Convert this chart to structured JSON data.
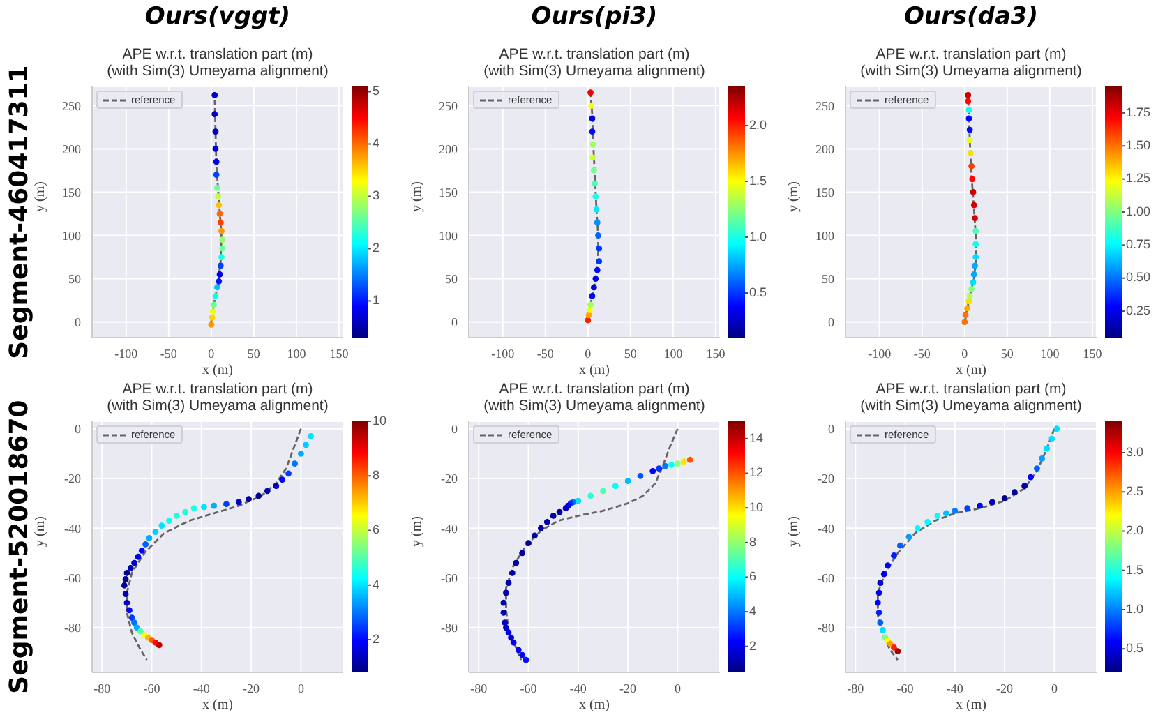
{
  "chart_data": [
    {
      "type": "line",
      "title": "APE w.r.t. translation part (m)\n(with Sim(3) Umeyama alignment)",
      "annotations": [
        "Ours(vggt)",
        "Segment-460417311"
      ],
      "xlabel": "x (m)",
      "ylabel": "y (m)",
      "xlim": [
        -140,
        155
      ],
      "ylim": [
        -18,
        272
      ],
      "xticks": [
        -100,
        -50,
        0,
        50,
        100,
        150
      ],
      "yticks": [
        0,
        50,
        100,
        150,
        200,
        250
      ],
      "grid": true,
      "legend": "top left",
      "clim": [
        0.3,
        5.1
      ],
      "cticks": [
        1,
        2,
        3,
        4,
        5
      ],
      "series": [
        {
          "name": "reference",
          "type": "line",
          "marker": "none",
          "line_style": "dashed",
          "color": "#666666",
          "x": [
            0,
            3,
            8,
            11,
            12,
            9,
            6,
            5,
            4
          ],
          "values": [
            0,
            20,
            45,
            70,
            100,
            140,
            180,
            220,
            262
          ]
        },
        {
          "type": "scatter",
          "marker": "circle",
          "x": [
            0,
            1,
            2,
            3,
            5,
            7,
            9,
            10,
            11,
            12,
            13,
            13,
            12,
            11,
            10,
            9,
            8,
            7,
            6,
            6,
            5,
            5,
            4,
            4
          ],
          "values": [
            -3,
            5,
            12,
            20,
            30,
            40,
            47,
            55,
            65,
            75,
            85,
            95,
            105,
            115,
            125,
            135,
            145,
            155,
            170,
            185,
            200,
            220,
            240,
            262
          ],
          "colors": [
            "#ff9500",
            "#ffd400",
            "#eaff15",
            "#6aff95",
            "#15ffea",
            "#00bfff",
            "#0015ff",
            "#0000ea",
            "#0040ff",
            "#15ffea",
            "#6aff95",
            "#95ff6a",
            "#ff9500",
            "#ff4000",
            "#ff6a00",
            "#ffbf00",
            "#bfff40",
            "#6aff95",
            "#0040ff",
            "#0000ea",
            "#0000d4",
            "#0000bf",
            "#0000bf",
            "#0000d4"
          ],
          "cvalues": [
            3.8,
            3.5,
            3.2,
            2.6,
            2.2,
            1.8,
            1.0,
            0.8,
            1.2,
            2.2,
            2.6,
            2.8,
            3.8,
            4.2,
            4.0,
            3.6,
            3.0,
            2.6,
            1.2,
            0.8,
            0.7,
            0.6,
            0.6,
            0.7
          ]
        }
      ]
    },
    {
      "type": "line",
      "title": "APE w.r.t. translation part (m)\n(with Sim(3) Umeyama alignment)",
      "annotations": [
        "Ours(pi3)"
      ],
      "xlabel": "x (m)",
      "ylabel": "y (m)",
      "xlim": [
        -140,
        155
      ],
      "ylim": [
        -18,
        272
      ],
      "xticks": [
        -100,
        -50,
        0,
        50,
        100,
        150
      ],
      "yticks": [
        0,
        50,
        100,
        150,
        200,
        250
      ],
      "grid": true,
      "legend": "top left",
      "clim": [
        0.1,
        2.35
      ],
      "cticks": [
        {
          "value": 0.5,
          "label": "0.5"
        },
        {
          "value": 1,
          "label": "1.0"
        },
        1.5,
        {
          "value": 2,
          "label": "2.0"
        }
      ],
      "series": [
        {
          "name": "reference",
          "type": "line",
          "marker": "none",
          "line_style": "dashed",
          "color": "#666666",
          "x": [
            0,
            3,
            8,
            12,
            12,
            10,
            8,
            6,
            5,
            3
          ],
          "values": [
            0,
            20,
            45,
            70,
            100,
            130,
            170,
            210,
            240,
            265
          ]
        },
        {
          "type": "scatter",
          "marker": "circle",
          "x": [
            0,
            1,
            2,
            3,
            5,
            7,
            9,
            11,
            13,
            13,
            12,
            11,
            10,
            9,
            8,
            7,
            6,
            6,
            5,
            5,
            4,
            3
          ],
          "values": [
            2,
            8,
            14,
            20,
            30,
            40,
            50,
            60,
            70,
            85,
            100,
            115,
            130,
            145,
            160,
            175,
            190,
            205,
            220,
            235,
            250,
            265
          ],
          "colors": [
            "#ff1f00",
            "#ffa700",
            "#fcff03",
            "#a1ff5e",
            "#0008ff",
            "#0000da",
            "#0000da",
            "#0008ff",
            "#0036ff",
            "#0036ff",
            "#0063ff",
            "#0091ff",
            "#00ebff",
            "#1affe6",
            "#47ffb8",
            "#74ff8b",
            "#cfff30",
            "#a1ff5e",
            "#0008ff",
            "#0000da",
            "#fcff03",
            "#f10000"
          ],
          "cvalues": [
            2.0,
            1.7,
            1.5,
            1.3,
            0.4,
            0.3,
            0.3,
            0.4,
            0.5,
            0.5,
            0.6,
            0.7,
            0.9,
            1.0,
            1.1,
            1.2,
            1.4,
            1.3,
            0.4,
            0.3,
            1.5,
            2.1
          ]
        }
      ]
    },
    {
      "type": "line",
      "title": "APE w.r.t. translation part (m)\n(with Sim(3) Umeyama alignment)",
      "annotations": [
        "Ours(da3)"
      ],
      "xlabel": "x (m)",
      "ylabel": "y (m)",
      "xlim": [
        -140,
        155
      ],
      "ylim": [
        -18,
        272
      ],
      "xticks": [
        -100,
        -50,
        0,
        50,
        100,
        150
      ],
      "yticks": [
        0,
        50,
        100,
        150,
        200,
        250
      ],
      "grid": true,
      "legend": "top left",
      "clim": [
        0.05,
        1.95
      ],
      "cticks": [
        0.25,
        {
          "value": 0.5,
          "label": "0.50"
        },
        0.75,
        {
          "value": 1,
          "label": "1.00"
        },
        1.25,
        {
          "value": 1.5,
          "label": "1.50"
        },
        1.75
      ],
      "series": [
        {
          "name": "reference",
          "type": "line",
          "marker": "none",
          "line_style": "dashed",
          "color": "#666666",
          "x": [
            0,
            6,
            11,
            13,
            13,
            11,
            8,
            6,
            5,
            4
          ],
          "values": [
            0,
            30,
            50,
            70,
            100,
            130,
            170,
            210,
            240,
            262
          ]
        },
        {
          "type": "scatter",
          "marker": "circle",
          "x": [
            0,
            1,
            3,
            5,
            6,
            8,
            10,
            11,
            12,
            13,
            13,
            13,
            12,
            11,
            10,
            9,
            8,
            7,
            6,
            6,
            5,
            5,
            4,
            4
          ],
          "values": [
            0,
            8,
            16,
            24,
            30,
            38,
            46,
            55,
            65,
            75,
            90,
            105,
            120,
            135,
            150,
            165,
            180,
            195,
            210,
            222,
            235,
            245,
            255,
            262
          ],
          "colors": [
            "#ff7200",
            "#ff7200",
            "#ffa800",
            "#ffdd00",
            "#b5ff4a",
            "#80ff80",
            "#00ddff",
            "#00a8ff",
            "#00a8ff",
            "#00ddff",
            "#14ffeb",
            "#4affb5",
            "#d00000",
            "#d00000",
            "#d00000",
            "#ff0700",
            "#ff3c00",
            "#ffdd00",
            "#ebff14",
            "#0007ff",
            "#0007ff",
            "#14ffeb",
            "#ff0700",
            "#d00000"
          ],
          "cvalues": [
            1.5,
            1.5,
            1.4,
            1.3,
            1.1,
            1.0,
            0.7,
            0.6,
            0.6,
            0.7,
            0.8,
            0.9,
            1.8,
            1.8,
            1.8,
            1.7,
            1.6,
            1.3,
            1.2,
            0.3,
            0.3,
            0.8,
            1.7,
            1.8
          ]
        }
      ]
    },
    {
      "type": "line",
      "title": "APE w.r.t. translation part (m)\n(with Sim(3) Umeyama alignment)",
      "annotations": [
        "Segment-520018670"
      ],
      "xlabel": "x (m)",
      "ylabel": "y (m)",
      "xlim": [
        -84,
        17
      ],
      "ylim": [
        -98,
        3
      ],
      "xticks": [
        -80,
        -60,
        -40,
        -20,
        0
      ],
      "yticks": [
        -80,
        -60,
        -40,
        -20,
        0
      ],
      "grid": true,
      "legend": "top left",
      "clim": [
        0.8,
        10
      ],
      "cticks": [
        2,
        4,
        6,
        8,
        10
      ],
      "series": [
        {
          "name": "reference",
          "type": "line",
          "marker": "none",
          "line_style": "dashed",
          "color": "#666666",
          "x": [
            0,
            -3,
            -6,
            -10,
            -16,
            -25,
            -35,
            -45,
            -55,
            -63,
            -68,
            -70,
            -70,
            -68,
            -65,
            -62
          ],
          "values": [
            0,
            -8,
            -16,
            -22,
            -27,
            -31,
            -34,
            -37,
            -42,
            -50,
            -58,
            -66,
            -74,
            -82,
            -88,
            -93
          ]
        },
        {
          "type": "scatter",
          "marker": "circle",
          "x": [
            4,
            2,
            0,
            -2.5,
            -5,
            -7.5,
            -10,
            -13.5,
            -17,
            -21,
            -25,
            -30,
            -35,
            -39,
            -43,
            -46.5,
            -50,
            -53,
            -56,
            -58.5,
            -61,
            -62.5,
            -64,
            -65.5,
            -67,
            -68.5,
            -70,
            -70.5,
            -71,
            -70.5,
            -70,
            -69,
            -68,
            -67,
            -66,
            -64.5,
            -63,
            -61.5,
            -60,
            -58.5,
            -57
          ],
          "values": [
            -3,
            -6.5,
            -10,
            -14,
            -18,
            -20.5,
            -23,
            -25,
            -27,
            -28.3,
            -29.5,
            -30.3,
            -31,
            -31.5,
            -32,
            -33.5,
            -35,
            -37,
            -39,
            -41.5,
            -44,
            -46.5,
            -49,
            -51.5,
            -54,
            -56,
            -58,
            -60.5,
            -63,
            -66.5,
            -70,
            -73,
            -76,
            -78,
            -80,
            -81.5,
            -83,
            -84,
            -85,
            -86,
            -87
          ],
          "colors": [
            "#00e3ff",
            "#00cdff",
            "#00acff",
            "#0074ff",
            "#003dff",
            "#0006ff",
            "#0000cd",
            "#0000ac",
            "#000096",
            "#0000ac",
            "#0000cd",
            "#003dff",
            "#00acff",
            "#00e3ff",
            "#1cffe3",
            "#1cffe3",
            "#1cffe3",
            "#06fff9",
            "#00e3ff",
            "#00cdff",
            "#00acff",
            "#005eff",
            "#0006ff",
            "#0000ee",
            "#0000cd",
            "#0000ac",
            "#000096",
            "#000096",
            "#000096",
            "#0000ac",
            "#0000cd",
            "#0006ff",
            "#003dff",
            "#0074ff",
            "#00acff",
            "#53ffac",
            "#f9ff06",
            "#ffb700",
            "#ff5e00",
            "#ff0600",
            "#b70000"
          ],
          "cvalues": [
            4.0,
            3.8,
            3.5,
            3.0,
            2.5,
            2.0,
            1.5,
            1.2,
            1.0,
            1.2,
            1.5,
            2.5,
            3.5,
            4.0,
            4.5,
            4.5,
            4.5,
            4.3,
            4.0,
            3.8,
            3.5,
            2.8,
            2.0,
            1.8,
            1.5,
            1.2,
            1.0,
            1.0,
            1.0,
            1.2,
            1.5,
            2.0,
            2.5,
            3.0,
            3.5,
            5.0,
            6.5,
            7.2,
            8.0,
            8.8,
            9.5
          ]
        }
      ]
    },
    {
      "type": "line",
      "title": "APE w.r.t. translation part (m)\n(with Sim(3) Umeyama alignment)",
      "xlabel": "x (m)",
      "ylabel": "y (m)",
      "xlim": [
        -84,
        17
      ],
      "ylim": [
        -98,
        3
      ],
      "xticks": [
        -80,
        -60,
        -40,
        -20,
        0
      ],
      "yticks": [
        -80,
        -60,
        -40,
        -20,
        0
      ],
      "grid": true,
      "legend": "top left",
      "clim": [
        0.5,
        15
      ],
      "cticks": [
        2,
        4,
        6,
        8,
        10,
        12,
        14
      ],
      "series": [
        {
          "name": "reference",
          "type": "line",
          "marker": "none",
          "line_style": "dashed",
          "color": "#666666",
          "x": [
            0,
            -3,
            -6,
            -9,
            -14,
            -20,
            -30,
            -40,
            -48,
            -55,
            -61,
            -66,
            -69,
            -69,
            -68,
            -65,
            -63
          ],
          "values": [
            0,
            -7,
            -15,
            -22,
            -27,
            -30,
            -33,
            -35,
            -37,
            -41,
            -47,
            -55,
            -64,
            -73,
            -81,
            -88,
            -93
          ]
        },
        {
          "type": "scatter",
          "marker": "circle",
          "x": [
            5,
            2.5,
            0,
            -2.5,
            -5,
            -7.5,
            -10,
            -15,
            -20,
            -25,
            -30,
            -35,
            -40,
            -42,
            -43,
            -44,
            -45,
            -47.5,
            -50,
            -52.5,
            -55,
            -57.5,
            -60,
            -62.5,
            -65,
            -66.5,
            -68,
            -69,
            -70,
            -70,
            -69.5,
            -69,
            -68,
            -67,
            -66,
            -64,
            -62.5,
            -61
          ],
          "values": [
            -12.5,
            -13.2,
            -14,
            -14.5,
            -15,
            -16,
            -17,
            -19,
            -21,
            -23,
            -25,
            -27,
            -29,
            -29.5,
            -30,
            -31,
            -32,
            -33.5,
            -35,
            -37.5,
            -40,
            -43,
            -46,
            -50,
            -54,
            -58,
            -62,
            -66,
            -70,
            -74,
            -78,
            -80,
            -82,
            -84,
            -86,
            -89,
            -91,
            -93
          ],
          "colors": [
            "#ff5400",
            "#ffe000",
            "#91ff6e",
            "#04fffb",
            "#0077ff",
            "#0030ff",
            "#0000e9",
            "#0054ff",
            "#00bdff",
            "#04fffb",
            "#4bffb4",
            "#28ffd7",
            "#00e0ff",
            "#0077ff",
            "#0030ff",
            "#0000e9",
            "#0000c6",
            "#0000b1",
            "#0000a3",
            "#0000a3",
            "#0000a3",
            "#00009c",
            "#00009c",
            "#00009c",
            "#0000a3",
            "#0000a3",
            "#0000a3",
            "#0000aa",
            "#0000b1",
            "#0000b8",
            "#0000c6",
            "#0000cd",
            "#0000db",
            "#0000e2",
            "#0000e9",
            "#0000f7",
            "#0006ff",
            "#000dff"
          ],
          "cvalues": [
            12.0,
            10.0,
            8.0,
            6.0,
            4.0,
            3.0,
            2.0,
            3.5,
            5.0,
            6.0,
            7.0,
            6.5,
            5.5,
            4.0,
            3.0,
            2.0,
            1.5,
            1.2,
            1.0,
            1.0,
            1.0,
            0.9,
            0.9,
            0.9,
            1.0,
            1.0,
            1.0,
            1.1,
            1.2,
            1.3,
            1.5,
            1.6,
            1.8,
            1.9,
            2.0,
            2.2,
            2.4,
            2.5
          ]
        }
      ]
    },
    {
      "type": "line",
      "title": "APE w.r.t. translation part (m)\n(with Sim(3) Umeyama alignment)",
      "xlabel": "x (m)",
      "ylabel": "y (m)",
      "xlim": [
        -84,
        17
      ],
      "ylim": [
        -98,
        3
      ],
      "xticks": [
        -80,
        -60,
        -40,
        -20,
        0
      ],
      "yticks": [
        -80,
        -60,
        -40,
        -20,
        0
      ],
      "grid": true,
      "legend": "top left",
      "clim": [
        0.2,
        3.4
      ],
      "cticks": [
        0.5,
        {
          "value": 1,
          "label": "1.0"
        },
        1.5,
        {
          "value": 2,
          "label": "2.0"
        },
        2.5,
        {
          "value": 3,
          "label": "3.0"
        }
      ],
      "series": [
        {
          "name": "reference",
          "type": "line",
          "marker": "none",
          "line_style": "dashed",
          "color": "#666666",
          "x": [
            0,
            -3,
            -7,
            -12,
            -20,
            -30,
            -40,
            -48,
            -56,
            -63,
            -68,
            -71,
            -71,
            -69,
            -66,
            -63
          ],
          "values": [
            0,
            -8,
            -17,
            -24,
            -29,
            -32,
            -34,
            -37,
            -42,
            -50,
            -58,
            -66,
            -75,
            -83,
            -89,
            -93
          ]
        },
        {
          "type": "scatter",
          "marker": "circle",
          "x": [
            1,
            -1,
            -3,
            -5,
            -7,
            -9.5,
            -12,
            -16,
            -20,
            -25,
            -30,
            -35,
            -40,
            -43.5,
            -47,
            -51,
            -55,
            -58.5,
            -62,
            -64.5,
            -67,
            -68.5,
            -70,
            -70.5,
            -71,
            -70.5,
            -70,
            -69,
            -68,
            -67,
            -66,
            -64.5,
            -63
          ],
          "values": [
            0,
            -4,
            -8,
            -12,
            -16,
            -19.5,
            -23,
            -25.5,
            -28,
            -29.5,
            -31,
            -32,
            -33,
            -34,
            -35,
            -37.5,
            -40,
            -43.5,
            -47,
            -51,
            -55,
            -58.5,
            -62,
            -66,
            -70,
            -74,
            -78,
            -81,
            -84,
            -85.3,
            -86.5,
            -88,
            -89.5
          ],
          "colors": [
            "#00dfff",
            "#00dfff",
            "#00dfff",
            "#009fff",
            "#0060ff",
            "#0000ff",
            "#00009f",
            "#00008f",
            "#000080",
            "#0000bf",
            "#0000ff",
            "#0040ff",
            "#0080ff",
            "#00bfff",
            "#00ffff",
            "#00ffff",
            "#00ffff",
            "#009fff",
            "#0060ff",
            "#0020ff",
            "#0000ff",
            "#0000ef",
            "#0000df",
            "#0000ef",
            "#0000ff",
            "#0020ff",
            "#0060ff",
            "#00dfff",
            "#80ff80",
            "#ffff00",
            "#ff9f00",
            "#ff2000",
            "#9f0000"
          ],
          "cvalues": [
            1.3,
            1.3,
            1.3,
            1.1,
            0.9,
            0.6,
            0.3,
            0.25,
            0.2,
            0.4,
            0.6,
            0.8,
            1.0,
            1.2,
            1.4,
            1.4,
            1.4,
            1.1,
            0.9,
            0.7,
            0.6,
            0.55,
            0.5,
            0.55,
            0.6,
            0.7,
            0.9,
            1.3,
            1.8,
            2.2,
            2.5,
            2.9,
            3.3
          ]
        }
      ]
    }
  ]
}
